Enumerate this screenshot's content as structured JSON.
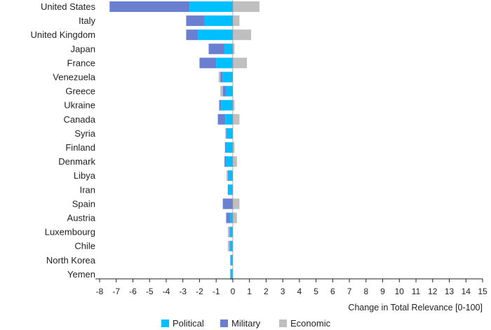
{
  "chart_data": {
    "type": "bar",
    "orientation": "horizontal",
    "stacked": true,
    "title": "",
    "xlabel": "Change in Total Relevance [0-100]",
    "ylabel": "",
    "xlim": [
      -8,
      15
    ],
    "x_ticks": [
      -8,
      -7,
      -6,
      -5,
      -4,
      -3,
      -2,
      -1,
      0,
      1,
      2,
      3,
      4,
      5,
      6,
      7,
      8,
      9,
      10,
      11,
      12,
      13,
      14,
      15
    ],
    "grid": false,
    "legend_position": "bottom",
    "categories": [
      "United States",
      "Italy",
      "United Kingdom",
      "Japan",
      "France",
      "Venezuela",
      "Greece",
      "Ukraine",
      "Canada",
      "Syria",
      "Finland",
      "Denmark",
      "Libya",
      "Iran",
      "Spain",
      "Austria",
      "Luxembourg",
      "Chile",
      "North Korea",
      "Yemen"
    ],
    "series": [
      {
        "name": "Political",
        "color": "#00BFFF",
        "values": [
          -2.6,
          -1.7,
          -2.1,
          -0.5,
          -1.0,
          -0.6,
          -0.4,
          -0.7,
          -0.45,
          -0.35,
          -0.4,
          -0.4,
          -0.25,
          -0.25,
          0.0,
          -0.15,
          -0.15,
          -0.15,
          -0.12,
          -0.12
        ]
      },
      {
        "name": "Military",
        "color": "#6B7FD0",
        "values": [
          -4.8,
          -1.1,
          -0.7,
          -0.95,
          -1.0,
          -0.15,
          -0.2,
          -0.12,
          -0.45,
          -0.05,
          -0.07,
          -0.1,
          -0.05,
          -0.05,
          -0.6,
          -0.25,
          -0.05,
          -0.05,
          -0.03,
          -0.03
        ]
      },
      {
        "name": "Economic",
        "color": "#BFBFBF",
        "values": [
          1.6,
          0.4,
          1.1,
          0.1,
          0.85,
          -0.1,
          -0.15,
          0.1,
          0.4,
          -0.05,
          0.1,
          0.25,
          -0.08,
          0.0,
          0.4,
          0.25,
          -0.1,
          -0.1,
          0.0,
          0.0
        ]
      }
    ]
  }
}
